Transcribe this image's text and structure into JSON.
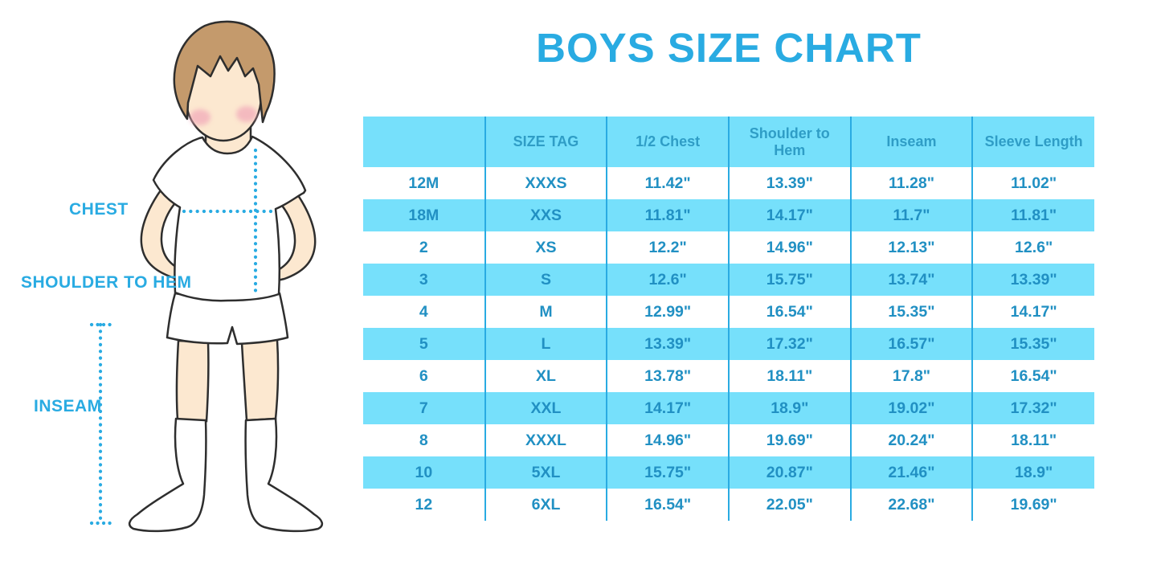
{
  "title": "BOYS SIZE CHART",
  "figure_labels": {
    "chest": "CHEST",
    "shoulder_to_hem": "SHOULDER TO HEM",
    "inseam": "INSEAM"
  },
  "colors": {
    "accent_blue": "#29ABE2",
    "band_cyan": "#76E0FB",
    "header_text": "#2F9DC6",
    "cell_text": "#2190C3",
    "hair": "#C49A6C",
    "skin": "#FCE8D0",
    "blush": "#F2ABBA",
    "outline": "#2E2E2E"
  },
  "chart_data": {
    "type": "table",
    "title": "BOYS SIZE CHART",
    "columns": [
      "",
      "SIZE TAG",
      "1/2 Chest",
      "Shoulder to Hem",
      "Inseam",
      "Sleeve Length"
    ],
    "rows": [
      [
        "12M",
        "XXXS",
        "11.42\"",
        "13.39\"",
        "11.28\"",
        "11.02\""
      ],
      [
        "18M",
        "XXS",
        "11.81\"",
        "14.17\"",
        "11.7\"",
        "11.81\""
      ],
      [
        "2",
        "XS",
        "12.2\"",
        "14.96\"",
        "12.13\"",
        "12.6\""
      ],
      [
        "3",
        "S",
        "12.6\"",
        "15.75\"",
        "13.74\"",
        "13.39\""
      ],
      [
        "4",
        "M",
        "12.99\"",
        "16.54\"",
        "15.35\"",
        "14.17\""
      ],
      [
        "5",
        "L",
        "13.39\"",
        "17.32\"",
        "16.57\"",
        "15.35\""
      ],
      [
        "6",
        "XL",
        "13.78\"",
        "18.11\"",
        "17.8\"",
        "16.54\""
      ],
      [
        "7",
        "XXL",
        "14.17\"",
        "18.9\"",
        "19.02\"",
        "17.32\""
      ],
      [
        "8",
        "XXXL",
        "14.96\"",
        "19.69\"",
        "20.24\"",
        "18.11\""
      ],
      [
        "10",
        "5XL",
        "15.75\"",
        "20.87\"",
        "21.46\"",
        "18.9\""
      ],
      [
        "12",
        "6XL",
        "16.54\"",
        "22.05\"",
        "22.68\"",
        "19.69\""
      ]
    ],
    "row_striping": "white / cyan alternating, header cyan",
    "units": "inches"
  }
}
